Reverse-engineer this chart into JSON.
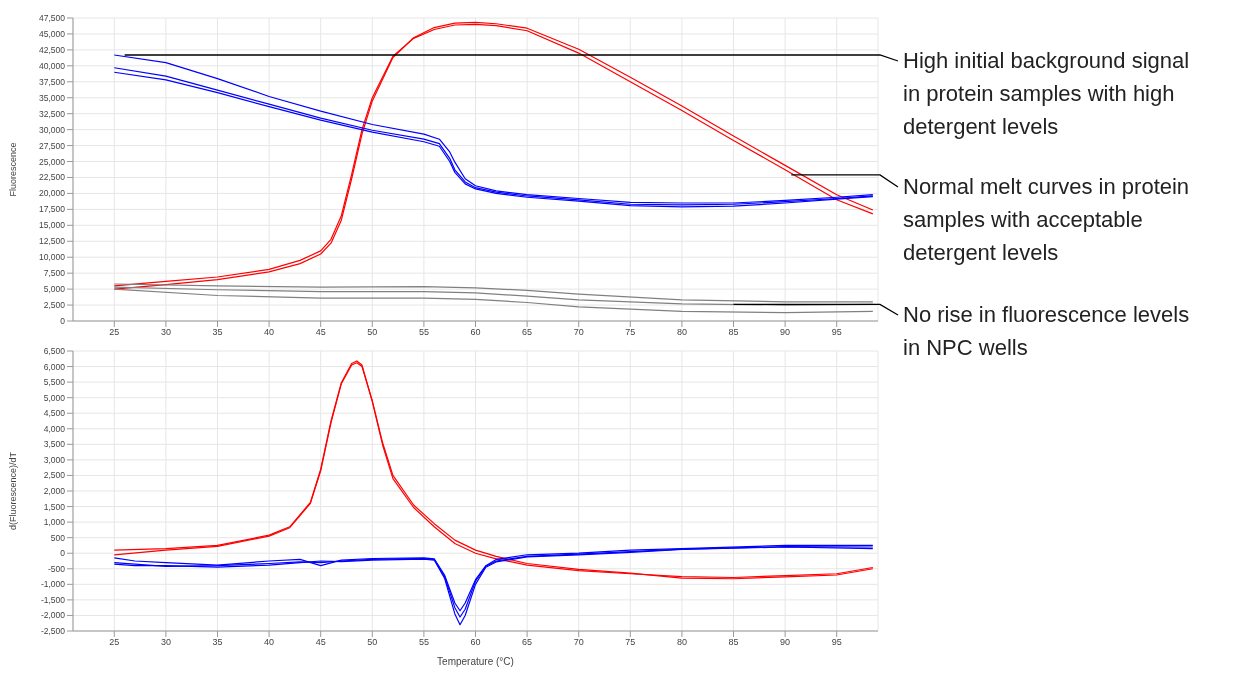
{
  "chart_data": [
    {
      "type": "line",
      "ylabel": "Fluorescence",
      "xlim": [
        21,
        99
      ],
      "xticks": [
        25,
        30,
        35,
        40,
        45,
        50,
        55,
        60,
        65,
        70,
        75,
        80,
        85,
        90,
        95
      ],
      "ylim": [
        0,
        47500
      ],
      "yticks": [
        0,
        {
          "value": 2500,
          "label": "2,500"
        },
        {
          "value": 5000,
          "label": "5,000"
        },
        {
          "value": 7500,
          "label": "7,500"
        },
        {
          "value": 10000,
          "label": "10,000"
        },
        {
          "value": 12500,
          "label": "12,500"
        },
        {
          "value": 15000,
          "label": "15,000"
        },
        {
          "value": 17500,
          "label": "17,500"
        },
        {
          "value": 20000,
          "label": "20,000"
        },
        {
          "value": 22500,
          "label": "22,500"
        },
        {
          "value": 25000,
          "label": "25,000"
        },
        {
          "value": 27500,
          "label": "27,500"
        },
        {
          "value": 30000,
          "label": "30,000"
        },
        {
          "value": 32500,
          "label": "32,500"
        },
        {
          "value": 35000,
          "label": "35,000"
        },
        {
          "value": 37500,
          "label": "37,500"
        },
        {
          "value": 40000,
          "label": "40,000"
        },
        {
          "value": 42500,
          "label": "42,500"
        },
        {
          "value": 45000,
          "label": "45,000"
        },
        {
          "value": 47500,
          "label": "47,500"
        }
      ],
      "grid": true,
      "series": [
        {
          "color": "#ff0000",
          "x": [
            25,
            30,
            35,
            40,
            43,
            45,
            46,
            47,
            48,
            49,
            50,
            52,
            54,
            56,
            58,
            60,
            62,
            65,
            70,
            75,
            80,
            85,
            90,
            95,
            98.5
          ],
          "values": [
            5500,
            6200,
            6900,
            8100,
            9500,
            11000,
            12800,
            16500,
            23000,
            30000,
            35000,
            41500,
            44300,
            45700,
            46400,
            46500,
            46300,
            45500,
            42000,
            37500,
            33000,
            28300,
            23700,
            19000,
            16800
          ]
        },
        {
          "color": "#ff0000",
          "x": [
            25,
            30,
            35,
            40,
            43,
            45,
            46,
            47,
            48,
            49,
            50,
            52,
            54,
            56,
            58,
            60,
            62,
            65,
            70,
            75,
            80,
            85,
            90,
            95,
            98.5
          ],
          "values": [
            5000,
            5700,
            6500,
            7700,
            9000,
            10500,
            12200,
            15800,
            22300,
            29300,
            34500,
            41300,
            44400,
            46000,
            46700,
            46800,
            46600,
            45900,
            42600,
            38200,
            33700,
            29000,
            24400,
            19800,
            17400
          ]
        },
        {
          "color": "#0000ff",
          "x": [
            25,
            30,
            35,
            40,
            45,
            50,
            55,
            56.5,
            57.5,
            58,
            59,
            60,
            62,
            65,
            70,
            75,
            80,
            85,
            90,
            95,
            98.5
          ],
          "values": [
            41700,
            40500,
            38000,
            35200,
            32900,
            30800,
            29300,
            28500,
            26500,
            24900,
            22300,
            21200,
            20400,
            19800,
            19200,
            18600,
            18500,
            18500,
            18900,
            19400,
            19800
          ]
        },
        {
          "color": "#0000ff",
          "x": [
            25,
            30,
            35,
            40,
            45,
            50,
            55,
            56.5,
            57.5,
            58,
            59,
            60,
            62,
            65,
            70,
            75,
            80,
            85,
            90,
            95,
            98.5
          ],
          "values": [
            39700,
            38400,
            36200,
            34000,
            31800,
            29900,
            28500,
            27800,
            25500,
            23700,
            21800,
            20900,
            20200,
            19600,
            19000,
            18300,
            18200,
            18300,
            18700,
            19200,
            19600
          ]
        },
        {
          "color": "#0000ff",
          "x": [
            25,
            30,
            35,
            40,
            45,
            50,
            55,
            56.5,
            57.5,
            58,
            59,
            60,
            62,
            65,
            70,
            75,
            80,
            85,
            90,
            95,
            98.5
          ],
          "values": [
            39000,
            37800,
            35800,
            33600,
            31500,
            29600,
            28100,
            27400,
            25000,
            23300,
            21500,
            20700,
            20000,
            19400,
            18800,
            18100,
            17900,
            18000,
            18500,
            19100,
            19500
          ]
        },
        {
          "color": "#808080",
          "x": [
            25,
            35,
            45,
            55,
            60,
            65,
            70,
            80,
            90,
            98.5
          ],
          "values": [
            5800,
            5500,
            5300,
            5400,
            5200,
            4800,
            4200,
            3300,
            3000,
            3000
          ]
        },
        {
          "color": "#808080",
          "x": [
            25,
            35,
            45,
            55,
            60,
            65,
            70,
            80,
            90,
            98.5
          ],
          "values": [
            5300,
            4900,
            4600,
            4600,
            4400,
            3900,
            3300,
            2700,
            2500,
            2600
          ]
        },
        {
          "color": "#808080",
          "x": [
            25,
            35,
            45,
            55,
            60,
            65,
            70,
            80,
            90,
            98.5
          ],
          "values": [
            5000,
            4000,
            3600,
            3600,
            3400,
            2900,
            2200,
            1500,
            1300,
            1500
          ]
        }
      ],
      "annotations": [
        {
          "text": "High initial background signal in protein samples with high detergent levels",
          "x": 26,
          "y": 41700
        },
        {
          "text": "Normal melt curves in protein samples with acceptable detergent levels",
          "x": 90.6,
          "y": 22900
        },
        {
          "text": "No rise in fluorescence levels in NPC wells",
          "x": 85,
          "y": 2600
        }
      ]
    },
    {
      "type": "line",
      "ylabel": "d(Fluorescence)/dT",
      "xlabel": "Temperature (°C)",
      "xlim": [
        21,
        99
      ],
      "xticks": [
        25,
        30,
        35,
        40,
        45,
        50,
        55,
        60,
        65,
        70,
        75,
        80,
        85,
        90,
        95
      ],
      "ylim": [
        -2500,
        6500
      ],
      "yticks": [
        {
          "value": -2500,
          "label": "-2,500"
        },
        {
          "value": -2000,
          "label": "-2,000"
        },
        {
          "value": -1500,
          "label": "-1,500"
        },
        {
          "value": -1000,
          "label": "-1,000"
        },
        -500,
        0,
        500,
        {
          "value": 1000,
          "label": "1,000"
        },
        {
          "value": 1500,
          "label": "1,500"
        },
        {
          "value": 2000,
          "label": "2,000"
        },
        {
          "value": 2500,
          "label": "2,500"
        },
        {
          "value": 3000,
          "label": "3,000"
        },
        {
          "value": 3500,
          "label": "3,500"
        },
        {
          "value": 4000,
          "label": "4,000"
        },
        {
          "value": 4500,
          "label": "4,500"
        },
        {
          "value": 5000,
          "label": "5,000"
        },
        {
          "value": 5500,
          "label": "5,500"
        },
        {
          "value": 6000,
          "label": "6,000"
        },
        {
          "value": 6500,
          "label": "6,500"
        }
      ],
      "grid": true,
      "series": [
        {
          "color": "#ff0000",
          "x": [
            25,
            30,
            35,
            40,
            42,
            44,
            45,
            46,
            47,
            48,
            48.5,
            49,
            50,
            51,
            52,
            54,
            56,
            58,
            60,
            62,
            65,
            70,
            75,
            80,
            85,
            90,
            95,
            98.5
          ],
          "values": [
            100,
            150,
            250,
            580,
            850,
            1630,
            2700,
            4250,
            5480,
            6100,
            6180,
            6050,
            4870,
            3480,
            2400,
            1470,
            850,
            310,
            0,
            -180,
            -380,
            -560,
            -660,
            -750,
            -780,
            -720,
            -660,
            -460
          ]
        },
        {
          "color": "#ff0000",
          "x": [
            25,
            30,
            35,
            40,
            42,
            44,
            45,
            46,
            47,
            48,
            48.5,
            49,
            50,
            51,
            52,
            54,
            56,
            58,
            60,
            62,
            65,
            70,
            75,
            80,
            85,
            90,
            95,
            98.5
          ],
          "values": [
            -50,
            100,
            220,
            550,
            820,
            1600,
            2650,
            4200,
            5450,
            6050,
            6120,
            6000,
            4900,
            3550,
            2500,
            1550,
            950,
            420,
            100,
            -100,
            -330,
            -520,
            -640,
            -800,
            -820,
            -760,
            -700,
            -500
          ]
        },
        {
          "color": "#0000ff",
          "x": [
            25,
            27,
            30,
            35,
            40,
            43,
            45,
            47,
            50,
            55,
            56,
            57,
            58,
            58.5,
            59,
            60,
            61,
            62,
            65,
            70,
            75,
            80,
            90,
            98.5
          ],
          "values": [
            -150,
            -250,
            -300,
            -380,
            -250,
            -200,
            -400,
            -220,
            -170,
            -150,
            -180,
            -700,
            -1600,
            -1850,
            -1600,
            -850,
            -400,
            -200,
            -50,
            0,
            100,
            150,
            250,
            250
          ]
        },
        {
          "color": "#0000ff",
          "x": [
            25,
            27,
            30,
            35,
            40,
            43,
            45,
            47,
            50,
            55,
            56,
            57,
            58,
            58.5,
            59,
            60,
            61,
            62,
            65,
            70,
            75,
            80,
            90,
            98.5
          ],
          "values": [
            -300,
            -350,
            -420,
            -400,
            -330,
            -280,
            -300,
            -250,
            -200,
            -170,
            -200,
            -750,
            -1750,
            -2050,
            -1800,
            -900,
            -420,
            -250,
            -100,
            -30,
            50,
            130,
            210,
            200
          ]
        },
        {
          "color": "#0000ff",
          "x": [
            25,
            27,
            30,
            35,
            40,
            43,
            45,
            47,
            50,
            55,
            56,
            57,
            58,
            58.5,
            59,
            60,
            61,
            62,
            65,
            70,
            75,
            80,
            90,
            98.5
          ],
          "values": [
            -350,
            -400,
            -400,
            -450,
            -380,
            -300,
            -250,
            -270,
            -220,
            -190,
            -220,
            -800,
            -1950,
            -2300,
            -2000,
            -1000,
            -450,
            -280,
            -120,
            -50,
            30,
            120,
            200,
            150
          ]
        }
      ]
    }
  ]
}
